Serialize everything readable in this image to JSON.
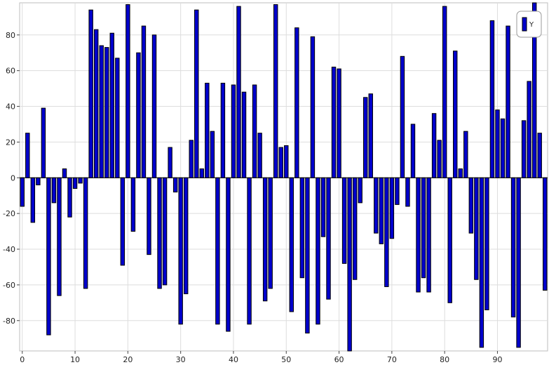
{
  "chart_data": {
    "type": "bar",
    "x": [
      0,
      1,
      2,
      3,
      4,
      5,
      6,
      7,
      8,
      9,
      10,
      11,
      12,
      13,
      14,
      15,
      16,
      17,
      18,
      19,
      20,
      21,
      22,
      23,
      24,
      25,
      26,
      27,
      28,
      29,
      30,
      31,
      32,
      33,
      34,
      35,
      36,
      37,
      38,
      39,
      40,
      41,
      42,
      43,
      44,
      45,
      46,
      47,
      48,
      49,
      50,
      51,
      52,
      53,
      54,
      55,
      56,
      57,
      58,
      59,
      60,
      61,
      62,
      63,
      64,
      65,
      66,
      67,
      68,
      69,
      70,
      71,
      72,
      73,
      74,
      75,
      76,
      77,
      78,
      79,
      80,
      81,
      82,
      83,
      84,
      85,
      86,
      87,
      88,
      89,
      90,
      91,
      92,
      93,
      94,
      95,
      96,
      97,
      98,
      99
    ],
    "series": [
      {
        "name": "Y",
        "color": "#0000cc",
        "values": [
          -16,
          25,
          -25,
          -4,
          39,
          -88,
          -14,
          -66,
          5,
          -22,
          -6,
          -3,
          -62,
          94,
          83,
          74,
          73,
          81,
          67,
          -49,
          97,
          -30,
          70,
          85,
          -43,
          80,
          -62,
          -60,
          17,
          -8,
          -82,
          -65,
          21,
          94,
          5,
          53,
          26,
          -82,
          53,
          -86,
          52,
          96,
          48,
          -82,
          52,
          25,
          -69,
          -62,
          97,
          17,
          18,
          -75,
          84,
          -56,
          -87,
          79,
          -82,
          -33,
          -68,
          62,
          61,
          -48,
          -97,
          -57,
          -14,
          45,
          47,
          -31,
          -37,
          -61,
          -34,
          -15,
          68,
          -16,
          30,
          -64,
          -56,
          -64,
          36,
          21,
          96,
          -70,
          71,
          5,
          26,
          -31,
          -57,
          -95,
          -74,
          88,
          38,
          33,
          85,
          -78,
          -95,
          32,
          54,
          98,
          25,
          -63
        ]
      }
    ],
    "xlim": [
      -0.5,
      99.5
    ],
    "ylim": [
      -97,
      98
    ],
    "x_ticks": [
      "0",
      "10",
      "20",
      "30",
      "40",
      "50",
      "60",
      "70",
      "80",
      "90"
    ],
    "y_ticks": [
      "80",
      "60",
      "40",
      "20",
      "0",
      "-20",
      "-40",
      "-60",
      "-80"
    ],
    "grid": true,
    "legend": {
      "position": "top-right",
      "entries": [
        "Y"
      ]
    },
    "title": "",
    "xlabel": "",
    "ylabel": ""
  }
}
